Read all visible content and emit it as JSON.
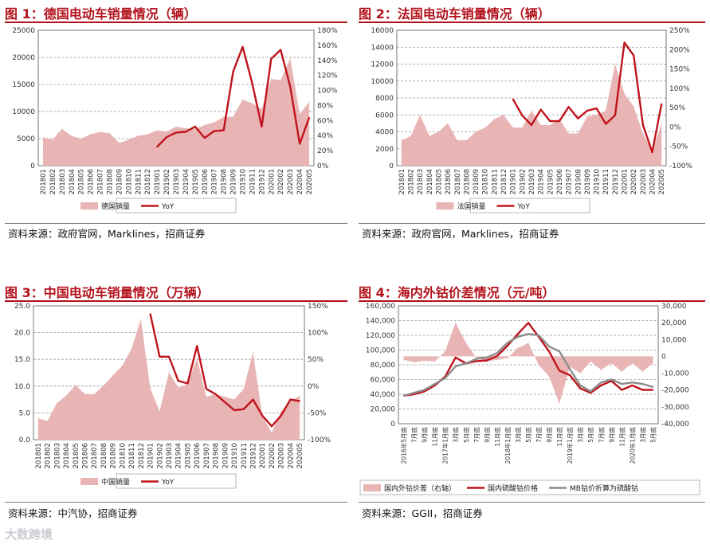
{
  "watermark": "大数跨境",
  "colors": {
    "title": "#b3121c",
    "area": "#e8b4b4",
    "line": "#c0141c",
    "gray": "#8c8c8c",
    "grid": "#9a9a9a"
  },
  "panels": [
    {
      "title": "图 1：德国电动车销量情况（辆）",
      "source": "资料来源：政府官网，Marklines，招商证券"
    },
    {
      "title": "图 2：法国电动车销量情况（辆）",
      "source": "资料来源：政府官网，Marklines，招商证券"
    },
    {
      "title": "图 3：中国电动车销量情况（万辆）",
      "source": "资料来源：中汽协，招商证券"
    },
    {
      "title": "图 4：海内外钴价差情况（元/吨）",
      "source": "资料来源：GGII，招商证券"
    }
  ],
  "chart_data": [
    {
      "type": "area",
      "categories": [
        "201801",
        "201802",
        "201803",
        "201804",
        "201805",
        "201806",
        "201807",
        "201808",
        "201809",
        "201810",
        "201811",
        "201812",
        "201901",
        "201902",
        "201903",
        "201904",
        "201905",
        "201906",
        "201907",
        "201908",
        "201909",
        "201910",
        "201911",
        "201912",
        "202001",
        "202002",
        "202003",
        "202004",
        "202005"
      ],
      "y_ticks": [
        "0",
        "5000",
        "10000",
        "15000",
        "20000",
        "25000"
      ],
      "y2_ticks": [
        "0%",
        "20%",
        "40%",
        "60%",
        "80%",
        "100%",
        "120%",
        "140%",
        "160%",
        "180%"
      ],
      "ylim": [
        0,
        25000
      ],
      "y2lim": [
        0,
        180
      ],
      "series": [
        {
          "name": "德国销量",
          "type": "area",
          "axis": "left",
          "values": [
            5200,
            4800,
            6800,
            5500,
            5000,
            5800,
            6200,
            6000,
            4200,
            4800,
            5500,
            5800,
            6500,
            6300,
            7200,
            6900,
            6800,
            7500,
            8000,
            9000,
            9000,
            12200,
            11500,
            10500,
            16000,
            15800,
            19800,
            9500,
            11800
          ]
        },
        {
          "name": "YoY",
          "type": "line",
          "axis": "right",
          "values": [
            null,
            null,
            null,
            null,
            null,
            null,
            null,
            null,
            null,
            null,
            null,
            null,
            25,
            38,
            44,
            45,
            52,
            37,
            46,
            47,
            125,
            158,
            110,
            52,
            142,
            154,
            105,
            29,
            64
          ]
        }
      ]
    },
    {
      "type": "area",
      "categories": [
        "201801",
        "201802",
        "201803",
        "201804",
        "201805",
        "201806",
        "201807",
        "201808",
        "201809",
        "201810",
        "201811",
        "201812",
        "201901",
        "201902",
        "201903",
        "201904",
        "201905",
        "201906",
        "201907",
        "201908",
        "201909",
        "201910",
        "201911",
        "201912",
        "202001",
        "202002",
        "202003",
        "202004",
        "202005"
      ],
      "y_ticks": [
        "0",
        "2000",
        "4000",
        "6000",
        "8000",
        "10000",
        "12000",
        "14000",
        "16000"
      ],
      "y2_ticks": [
        "-100%",
        "-50%",
        "0%",
        "50%",
        "100%",
        "150%",
        "200%",
        "250%"
      ],
      "ylim": [
        0,
        16000
      ],
      "y2lim": [
        -100,
        250
      ],
      "series": [
        {
          "name": "法国销量",
          "type": "area",
          "axis": "left",
          "values": [
            3000,
            3500,
            6000,
            3500,
            4000,
            5000,
            3000,
            3000,
            4000,
            4500,
            5500,
            6000,
            4500,
            4500,
            6500,
            4800,
            4800,
            5500,
            3800,
            3800,
            5800,
            6000,
            6500,
            12000,
            8500,
            7000,
            3800,
            1700,
            5000
          ]
        },
        {
          "name": "YoY",
          "type": "line",
          "axis": "right",
          "values": [
            null,
            null,
            null,
            null,
            null,
            null,
            null,
            null,
            null,
            null,
            null,
            null,
            72,
            30,
            5,
            45,
            15,
            15,
            52,
            22,
            42,
            48,
            8,
            30,
            218,
            185,
            5,
            -65,
            60
          ]
        }
      ]
    },
    {
      "type": "area",
      "categories": [
        "201801",
        "201802",
        "201803",
        "201804",
        "201805",
        "201806",
        "201807",
        "201808",
        "201809",
        "201810",
        "201811",
        "201812",
        "201901",
        "201902",
        "201903",
        "201904",
        "201905",
        "201906",
        "201907",
        "201908",
        "201909",
        "201910",
        "201911",
        "201912",
        "202001",
        "202002",
        "202003",
        "202004",
        "202005"
      ],
      "y_ticks": [
        "0.0",
        "5.0",
        "10.0",
        "15.0",
        "20.0",
        "25.0"
      ],
      "y2_ticks": [
        "-100%",
        "-50%",
        "0%",
        "50%",
        "100%",
        "150%"
      ],
      "ylim": [
        0,
        25
      ],
      "y2lim": [
        -100,
        150
      ],
      "series": [
        {
          "name": "中国销量",
          "type": "area",
          "axis": "left",
          "values": [
            4.0,
            3.5,
            6.8,
            8.2,
            10.2,
            8.5,
            8.5,
            10.1,
            12.0,
            13.8,
            17.0,
            22.5,
            9.6,
            5.3,
            12.6,
            9.7,
            10.4,
            15.2,
            8.0,
            8.5,
            8.0,
            7.5,
            9.5,
            16.3,
            4.4,
            1.3,
            5.3,
            7.2,
            8.2
          ]
        },
        {
          "name": "YoY",
          "type": "line",
          "axis": "right",
          "values": [
            null,
            null,
            null,
            null,
            null,
            null,
            null,
            null,
            null,
            null,
            null,
            null,
            135,
            55,
            55,
            10,
            5,
            75,
            -5,
            -15,
            -30,
            -45,
            -43,
            -25,
            -55,
            -75,
            -55,
            -25,
            -28
          ]
        }
      ]
    },
    {
      "type": "area",
      "categories": [
        "2016年5月底",
        "7月底",
        "9月底",
        "11月底",
        "2017年1月底",
        "3月底",
        "5月底",
        "7月底",
        "9月底",
        "11月底",
        "2018年1月底",
        "3月底",
        "5月底",
        "7月底",
        "9月底",
        "11月底",
        "2019年1月底",
        "3月底",
        "5月底",
        "7月底",
        "9月底",
        "11月底",
        "2020年1月底",
        "3月底",
        "5月底"
      ],
      "y_ticks": [
        "0",
        "20,000",
        "40,000",
        "60,000",
        "80,000",
        "100,000",
        "120,000",
        "140,000",
        "160,000"
      ],
      "y2_ticks": [
        "-40,000",
        "-30,000",
        "-20,000",
        "-10,000",
        "0",
        "10,000",
        "20,000",
        "30,000"
      ],
      "ylim": [
        0,
        160000
      ],
      "y2lim": [
        -40000,
        30000
      ],
      "series": [
        {
          "name": "国内外钴价差（右轴）",
          "type": "area",
          "axis": "right",
          "values": [
            -2000,
            -3500,
            -2500,
            -3000,
            3000,
            20000,
            8000,
            -1000,
            -3000,
            -2000,
            -1000,
            5000,
            8000,
            -5000,
            -12000,
            -28000,
            -6000,
            -10000,
            -3000,
            -8000,
            -4000,
            -9000,
            -4000,
            -9000,
            -4000
          ]
        },
        {
          "name": "国内硫酸钴价格",
          "type": "line",
          "axis": "left",
          "values": [
            38000,
            40000,
            44000,
            52000,
            64000,
            90000,
            82000,
            85000,
            86000,
            92000,
            106000,
            122000,
            137000,
            118000,
            98000,
            72000,
            66000,
            48000,
            42000,
            52000,
            58000,
            46000,
            52000,
            46000,
            46000
          ]
        },
        {
          "name": "MB钴价折算为硫酸钴",
          "type": "line",
          "axis": "left",
          "values": [
            38000,
            42000,
            46000,
            54000,
            62000,
            78000,
            82000,
            88000,
            90000,
            96000,
            110000,
            118000,
            122000,
            120000,
            105000,
            98000,
            74000,
            52000,
            44000,
            56000,
            60000,
            54000,
            56000,
            54000,
            50000
          ]
        }
      ]
    }
  ]
}
